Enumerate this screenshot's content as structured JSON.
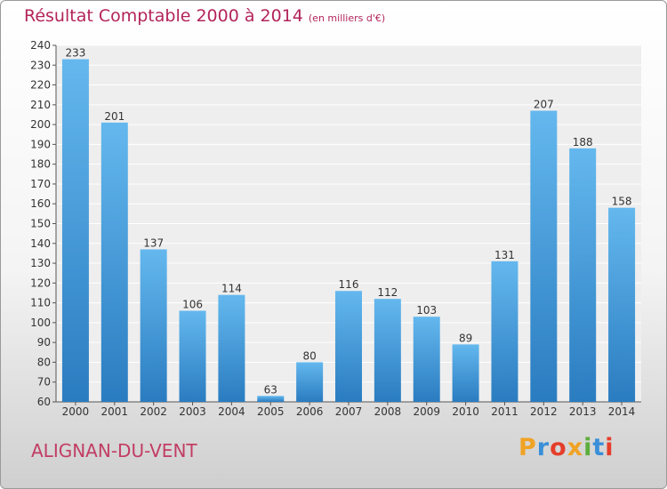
{
  "header": {
    "title": "Résultat Comptable 2000 à 2014",
    "unit": "(en milliers d'€)"
  },
  "footer": {
    "commune": "ALIGNAN-DU-VENT",
    "logo_letters": [
      "P",
      "r",
      "o",
      "x",
      "i",
      "t",
      "i"
    ],
    "logo_colors": [
      "#f0a324",
      "#3a8fd9",
      "#e43e2b",
      "#f0a324",
      "#5cae3c",
      "#3a8fd9",
      "#e43e2b"
    ]
  },
  "colors": {
    "bar_light": "#64b8ee",
    "bar_dark": "#2a7cc0",
    "title": "#b3245a"
  },
  "chart_data": {
    "type": "bar",
    "categories": [
      "2000",
      "2001",
      "2002",
      "2003",
      "2004",
      "2005",
      "2006",
      "2007",
      "2008",
      "2009",
      "2010",
      "2011",
      "2012",
      "2013",
      "2014"
    ],
    "values": [
      233,
      201,
      137,
      106,
      114,
      63,
      80,
      116,
      112,
      103,
      89,
      131,
      207,
      188,
      158
    ],
    "ylim": [
      60,
      240
    ],
    "ytick_step": 10,
    "grid": true
  }
}
